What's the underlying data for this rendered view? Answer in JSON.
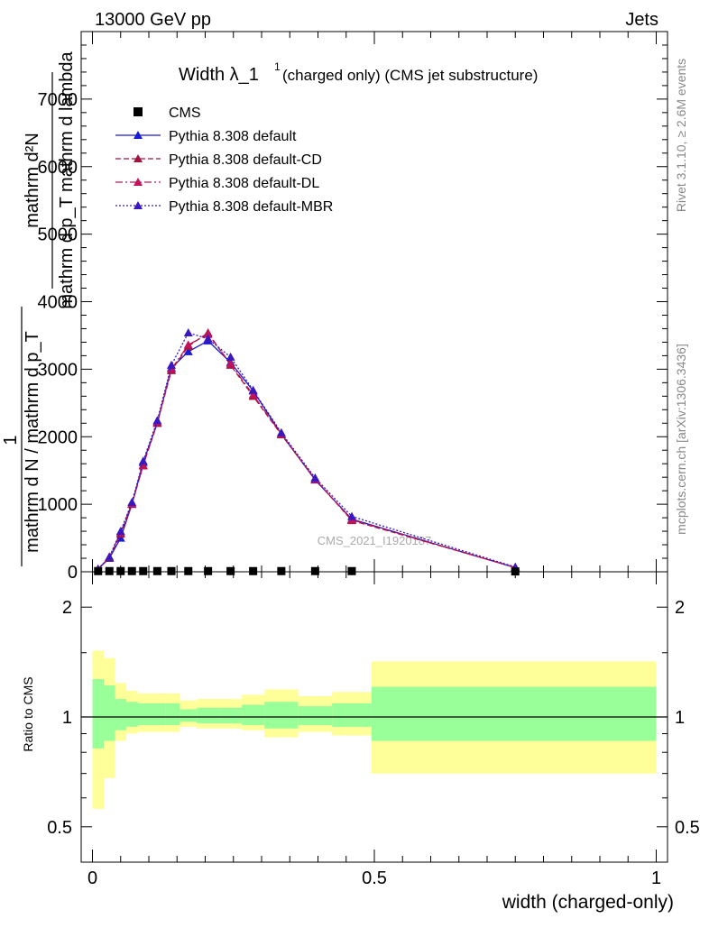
{
  "header": {
    "energy_label": "13000 GeV pp",
    "process_label": "Jets"
  },
  "side_labels": {
    "rivet": "Rivet 3.1.10, ≥ 2.6M events",
    "mcplots": "mcplots.cern.ch [arXiv:1306.3436]"
  },
  "watermark": "CMS_2021_I1920187",
  "main_plot": {
    "title": "Width λ_1",
    "title_sup": "1",
    "title_suffix": "(charged only) (CMS jet substructure)",
    "ylabel_line1_top": "mathrm d²N",
    "ylabel_line1_bottom": "mathrm d p_T mathrm d lambda",
    "ylabel_line2_top": "1",
    "ylabel_line2_bottom": "mathrm d N / mathrm d p_T",
    "yticks": [
      "0",
      "1000",
      "2000",
      "3000",
      "4000",
      "5000",
      "6000",
      "7000"
    ]
  },
  "ratio_plot": {
    "ylabel": "Ratio to CMS",
    "yticks": [
      "0.5",
      "1",
      "2"
    ]
  },
  "xaxis": {
    "label": "width (charged-only)",
    "ticks": [
      "0",
      "0.5",
      "1"
    ]
  },
  "legend": [
    {
      "label": "CMS",
      "color": "#000000",
      "style": "square"
    },
    {
      "label": "Pythia 8.308 default",
      "color": "#1a1ad0",
      "style": "solid"
    },
    {
      "label": "Pythia 8.308 default-CD",
      "color": "#a0153e",
      "style": "dashed"
    },
    {
      "label": "Pythia 8.308 default-DL",
      "color": "#c0135a",
      "style": "dashdot"
    },
    {
      "label": "Pythia 8.308 default-MBR",
      "color": "#3a18c0",
      "style": "dotted"
    }
  ],
  "chart_data": {
    "type": "line",
    "xlim": [
      -0.02,
      1.02
    ],
    "ylim": [
      0,
      8000
    ],
    "ratio_ylim_log": [
      0.4,
      2.5
    ],
    "x": [
      0.01,
      0.03,
      0.05,
      0.07,
      0.09,
      0.115,
      0.14,
      0.17,
      0.205,
      0.245,
      0.285,
      0.335,
      0.395,
      0.46,
      0.75
    ],
    "cms_values": [
      10,
      10,
      10,
      10,
      10,
      10,
      10,
      10,
      10,
      10,
      10,
      10,
      10,
      10,
      5
    ],
    "series": [
      {
        "name": "Pythia 8.308 default",
        "values": [
          40,
          200,
          500,
          1000,
          1620,
          2200,
          3020,
          3260,
          3420,
          3100,
          2680,
          2040,
          1360,
          780,
          60
        ]
      },
      {
        "name": "Pythia 8.308 default-CD",
        "values": [
          40,
          210,
          560,
          1000,
          1580,
          2200,
          2980,
          3340,
          3540,
          3060,
          2600,
          2030,
          1370,
          760,
          65
        ]
      },
      {
        "name": "Pythia 8.308 default-DL",
        "values": [
          40,
          220,
          580,
          1010,
          1570,
          2220,
          3000,
          3360,
          3520,
          3080,
          2620,
          2040,
          1370,
          770,
          62
        ]
      },
      {
        "name": "Pythia 8.308 default-MBR",
        "values": [
          40,
          220,
          600,
          1030,
          1640,
          2240,
          3060,
          3540,
          3450,
          3180,
          2690,
          2060,
          1390,
          820,
          70
        ]
      }
    ],
    "ratio_bins": [
      {
        "lo": 0.0,
        "hi": 0.02,
        "yellow": [
          0.56,
          1.52
        ],
        "green": [
          0.82,
          1.27
        ]
      },
      {
        "lo": 0.02,
        "hi": 0.04,
        "yellow": [
          0.68,
          1.45
        ],
        "green": [
          0.86,
          1.22
        ]
      },
      {
        "lo": 0.04,
        "hi": 0.06,
        "yellow": [
          0.86,
          1.24
        ],
        "green": [
          0.92,
          1.12
        ]
      },
      {
        "lo": 0.06,
        "hi": 0.08,
        "yellow": [
          0.9,
          1.18
        ],
        "green": [
          0.94,
          1.1
        ]
      },
      {
        "lo": 0.08,
        "hi": 0.1,
        "yellow": [
          0.91,
          1.16
        ],
        "green": [
          0.95,
          1.09
        ]
      },
      {
        "lo": 0.1,
        "hi": 0.13,
        "yellow": [
          0.91,
          1.16
        ],
        "green": [
          0.95,
          1.09
        ]
      },
      {
        "lo": 0.13,
        "hi": 0.155,
        "yellow": [
          0.91,
          1.16
        ],
        "green": [
          0.95,
          1.09
        ]
      },
      {
        "lo": 0.155,
        "hi": 0.185,
        "yellow": [
          0.94,
          1.11
        ],
        "green": [
          0.97,
          1.05
        ]
      },
      {
        "lo": 0.185,
        "hi": 0.225,
        "yellow": [
          0.93,
          1.12
        ],
        "green": [
          0.96,
          1.06
        ]
      },
      {
        "lo": 0.225,
        "hi": 0.265,
        "yellow": [
          0.93,
          1.12
        ],
        "green": [
          0.96,
          1.06
        ]
      },
      {
        "lo": 0.265,
        "hi": 0.305,
        "yellow": [
          0.92,
          1.15
        ],
        "green": [
          0.95,
          1.08
        ]
      },
      {
        "lo": 0.305,
        "hi": 0.365,
        "yellow": [
          0.88,
          1.19
        ],
        "green": [
          0.93,
          1.1
        ]
      },
      {
        "lo": 0.365,
        "hi": 0.425,
        "yellow": [
          0.91,
          1.14
        ],
        "green": [
          0.95,
          1.07
        ]
      },
      {
        "lo": 0.425,
        "hi": 0.495,
        "yellow": [
          0.89,
          1.17
        ],
        "green": [
          0.94,
          1.09
        ]
      },
      {
        "lo": 0.495,
        "hi": 1.0,
        "yellow": [
          0.7,
          1.42
        ],
        "green": [
          0.86,
          1.21
        ]
      }
    ]
  }
}
